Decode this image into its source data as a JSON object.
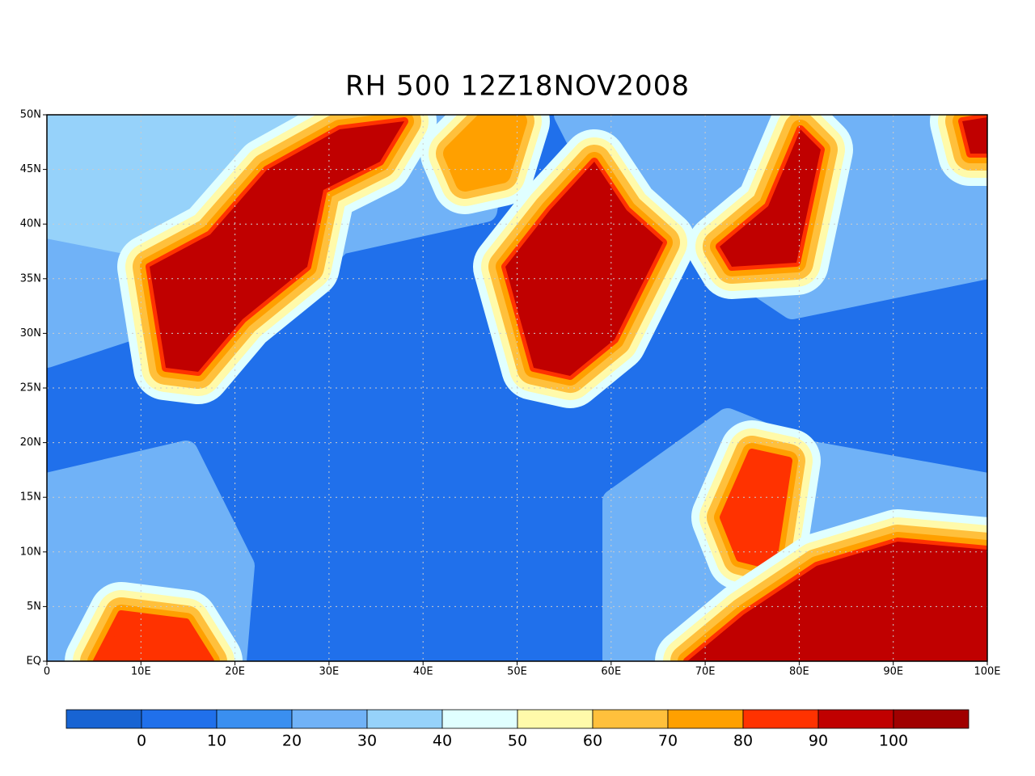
{
  "map": {
    "title": "RH 500 12Z18NOV2008",
    "xlim": [
      0,
      100
    ],
    "ylim": [
      0,
      50
    ],
    "xticks": [
      {
        "value": 0,
        "label": "0"
      },
      {
        "value": 10,
        "label": "10E"
      },
      {
        "value": 20,
        "label": "20E"
      },
      {
        "value": 30,
        "label": "30E"
      },
      {
        "value": 40,
        "label": "40E"
      },
      {
        "value": 50,
        "label": "50E"
      },
      {
        "value": 60,
        "label": "60E"
      },
      {
        "value": 70,
        "label": "70E"
      },
      {
        "value": 80,
        "label": "80E"
      },
      {
        "value": 90,
        "label": "90E"
      },
      {
        "value": 100,
        "label": "100E"
      }
    ],
    "yticks": [
      {
        "value": 0,
        "label": "EQ"
      },
      {
        "value": 5,
        "label": "5N"
      },
      {
        "value": 10,
        "label": "10N"
      },
      {
        "value": 15,
        "label": "15N"
      },
      {
        "value": 20,
        "label": "20N"
      },
      {
        "value": 25,
        "label": "25N"
      },
      {
        "value": 30,
        "label": "30N"
      },
      {
        "value": 35,
        "label": "35N"
      },
      {
        "value": 40,
        "label": "40N"
      },
      {
        "value": 45,
        "label": "45N"
      },
      {
        "value": 50,
        "label": "50N"
      }
    ],
    "grid": true,
    "colorbar": {
      "levels": [
        0,
        10,
        20,
        30,
        40,
        50,
        60,
        70,
        80,
        90,
        100
      ],
      "colors": [
        "#1864d3",
        "#2070eb",
        "#3a8ff0",
        "#70b2f7",
        "#96d2fa",
        "#e0ffff",
        "#fffaaa",
        "#ffc03c",
        "#ffa000",
        "#ff3200",
        "#c00000",
        "#a00000"
      ]
    }
  }
}
